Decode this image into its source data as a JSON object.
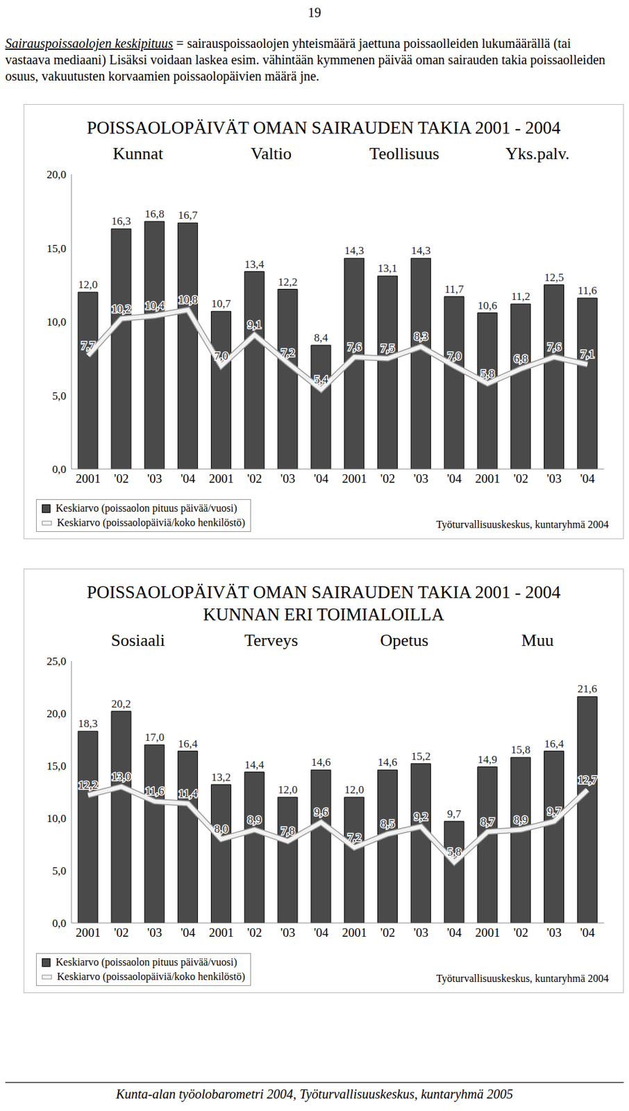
{
  "page_number": "19",
  "paragraph": {
    "term": "Sairauspoissaolojen keskipituus",
    "text": "= sairauspoissaolojen yhteismäärä jaettuna poissaolleiden lukumäärällä (tai vastaava mediaani) Lisäksi voidaan laskea esim. vähintään kymmenen päivää oman sairauden takia poissaolleiden osuus, vakuutusten korvaamien poissaolopäivien määrä jne."
  },
  "chart_data": [
    {
      "type": "bar",
      "title": "POISSAOLOPÄIVÄT OMAN SAIRAUDEN TAKIA 2001 - 2004",
      "groups": [
        "Kunnat",
        "Valtio",
        "Teollisuus",
        "Yks.palv."
      ],
      "categories": [
        "2001",
        "'02",
        "'03",
        "'04",
        "2001",
        "'02",
        "'03",
        "'04",
        "2001",
        "'02",
        "'03",
        "'04",
        "2001",
        "'02",
        "'03",
        "'04"
      ],
      "series": [
        {
          "name": "Keskiarvo (poissaolon pituus päivää/vuosi)",
          "type": "bar",
          "color": "#4a4a4a",
          "values": [
            12.0,
            16.3,
            16.8,
            16.7,
            10.7,
            13.4,
            12.2,
            8.4,
            14.3,
            13.1,
            14.3,
            11.7,
            10.6,
            11.2,
            12.5,
            11.6
          ],
          "value_labels": [
            "12,0",
            "16,3",
            "16,8",
            "16,7",
            "10,7",
            "13,4",
            "12,2",
            "8,4",
            "14,3",
            "13,1",
            "14,3",
            "11,7",
            "10,6",
            "11,2",
            "12,5",
            "11,6"
          ]
        },
        {
          "name": "Keskiarvo (poissaolopäiviä/koko henkilöstö)",
          "type": "line",
          "color": "#f2f2f2",
          "values": [
            7.7,
            10.2,
            10.4,
            10.8,
            7.0,
            9.1,
            7.2,
            5.4,
            7.6,
            7.5,
            8.3,
            7.0,
            5.8,
            6.8,
            7.6,
            7.1
          ],
          "value_labels": [
            "7,7",
            "10,2",
            "10,4",
            "10,8",
            "7,0",
            "9,1",
            "7,2",
            "5,4",
            "7,6",
            "7,5",
            "8,3",
            "7,0",
            "5,8",
            "6,8",
            "7,6",
            "7,1"
          ]
        }
      ],
      "ylim": [
        0,
        20
      ],
      "yticks": [
        {
          "value": 0,
          "label": "0,0"
        },
        {
          "value": 5,
          "label": "5,0"
        },
        {
          "value": 10,
          "label": "10,0"
        },
        {
          "value": 15,
          "label": "15,0"
        },
        {
          "value": 20,
          "label": "20,0"
        }
      ],
      "grid": false,
      "data_labels": true,
      "source": "Työturvallisuuskeskus, kuntaryhmä 2004"
    },
    {
      "type": "bar",
      "title": "POISSAOLOPÄIVÄT OMAN SAIRAUDEN TAKIA 2001 - 2004\nKUNNAN ERI TOIMIALOILLA",
      "groups": [
        "Sosiaali",
        "Terveys",
        "Opetus",
        "Muu"
      ],
      "categories": [
        "2001",
        "'02",
        "'03",
        "'04",
        "2001",
        "'02",
        "'03",
        "'04",
        "2001",
        "'02",
        "'03",
        "'04",
        "2001",
        "'02",
        "'03",
        "'04"
      ],
      "series": [
        {
          "name": "Keskiarvo (poissaolon pituus päivää/vuosi)",
          "type": "bar",
          "color": "#4a4a4a",
          "values": [
            18.3,
            20.2,
            17.0,
            16.4,
            13.2,
            14.4,
            12.0,
            14.6,
            12.0,
            14.6,
            15.2,
            9.7,
            14.9,
            15.8,
            16.4,
            21.6
          ],
          "value_labels": [
            "18,3",
            "20,2",
            "17,0",
            "16,4",
            "13,2",
            "14,4",
            "12,0",
            "14,6",
            "12,0",
            "14,6",
            "15,2",
            "9,7",
            "14,9",
            "15,8",
            "16,4",
            "21,6"
          ]
        },
        {
          "name": "Keskiarvo (poissaolopäiviä/koko henkilöstö)",
          "type": "line",
          "color": "#f2f2f2",
          "values": [
            12.2,
            13.0,
            11.6,
            11.4,
            8.0,
            8.9,
            7.8,
            9.6,
            7.2,
            8.5,
            9.2,
            5.8,
            8.7,
            8.9,
            9.7,
            12.7
          ],
          "value_labels": [
            "12,2",
            "13,0",
            "11,6",
            "11,4",
            "8,0",
            "8,9",
            "7,8",
            "9,6",
            "7,2",
            "8,5",
            "9,2",
            "5,8",
            "8,7",
            "8,9",
            "9,7",
            "12,7"
          ]
        }
      ],
      "ylim": [
        0,
        25
      ],
      "yticks": [
        {
          "value": 0,
          "label": "0,0"
        },
        {
          "value": 5,
          "label": "5,0"
        },
        {
          "value": 10,
          "label": "10,0"
        },
        {
          "value": 15,
          "label": "15,0"
        },
        {
          "value": 20,
          "label": "20,0"
        },
        {
          "value": 25,
          "label": "25,0"
        }
      ],
      "grid": false,
      "data_labels": true,
      "source": "Työturvallisuuskeskus, kuntaryhmä 2004"
    }
  ],
  "footer": "Kunta-alan työolobarometri 2004, Työturvallisuuskeskus, kuntaryhmä 2005"
}
